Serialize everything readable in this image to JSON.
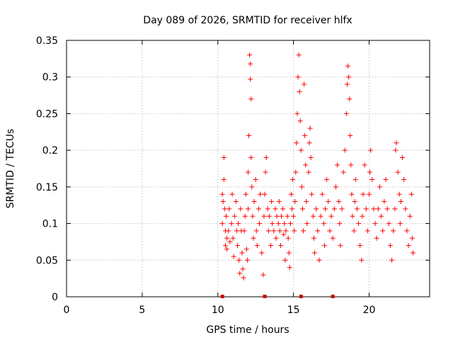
{
  "chart_data": {
    "type": "scatter",
    "title": "Day 089 of 2026, SRMTID for receiver hlfx",
    "xlabel": "GPS time / hours",
    "ylabel": "SRMTID / TECUs",
    "xlim": [
      0,
      24
    ],
    "ylim": [
      0,
      0.35
    ],
    "xticks": [
      0,
      5,
      10,
      15,
      20
    ],
    "xtick_labels": [
      "0",
      "5",
      "10",
      "15",
      "20"
    ],
    "yticks": [
      0,
      0.05,
      0.1,
      0.15,
      0.2,
      0.25,
      0.3,
      0.35
    ],
    "ytick_labels": [
      "0",
      "0.05",
      "0.1",
      "0.15",
      "0.2",
      "0.25",
      "0.3",
      "0.35"
    ],
    "grid": true,
    "marker": "plus",
    "color": "#ff0000",
    "series": [
      {
        "name": "SRMTID",
        "points": [
          [
            10.3,
            0.14
          ],
          [
            10.3,
            0.1
          ],
          [
            10.35,
            0.13
          ],
          [
            10.4,
            0.19
          ],
          [
            10.4,
            0.16
          ],
          [
            10.45,
            0.12
          ],
          [
            10.5,
            0.09
          ],
          [
            10.5,
            0.07
          ],
          [
            10.55,
            0.11
          ],
          [
            10.6,
            0.08
          ],
          [
            10.6,
            0.065
          ],
          [
            10.7,
            0.09
          ],
          [
            10.75,
            0.12
          ],
          [
            10.8,
            0.075
          ],
          [
            10.9,
            0.1
          ],
          [
            10.95,
            0.14
          ],
          [
            11.0,
            0.08
          ],
          [
            11.05,
            0.055
          ],
          [
            11.1,
            0.11
          ],
          [
            11.2,
            0.13
          ],
          [
            11.25,
            0.09
          ],
          [
            11.3,
            0.07
          ],
          [
            11.35,
            0.1
          ],
          [
            11.4,
            0.05
          ],
          [
            11.45,
            0.032
          ],
          [
            11.5,
            0.12
          ],
          [
            11.55,
            0.09
          ],
          [
            11.6,
            0.06
          ],
          [
            11.65,
            0.038
          ],
          [
            11.7,
            0.026
          ],
          [
            11.75,
            0.09
          ],
          [
            11.8,
            0.11
          ],
          [
            11.85,
            0.14
          ],
          [
            11.9,
            0.065
          ],
          [
            11.95,
            0.05
          ],
          [
            12.0,
            0.12
          ],
          [
            12.0,
            0.17
          ],
          [
            12.05,
            0.22
          ],
          [
            12.1,
            0.33
          ],
          [
            12.15,
            0.318
          ],
          [
            12.15,
            0.297
          ],
          [
            12.2,
            0.27
          ],
          [
            12.2,
            0.19
          ],
          [
            12.25,
            0.15
          ],
          [
            12.3,
            0.11
          ],
          [
            12.35,
            0.08
          ],
          [
            12.4,
            0.13
          ],
          [
            12.5,
            0.16
          ],
          [
            12.55,
            0.09
          ],
          [
            12.6,
            0.07
          ],
          [
            12.7,
            0.12
          ],
          [
            12.75,
            0.1
          ],
          [
            12.8,
            0.14
          ],
          [
            12.9,
            0.06
          ],
          [
            13.0,
            0.03
          ],
          [
            13.05,
            0.11
          ],
          [
            13.1,
            0.14
          ],
          [
            13.15,
            0.17
          ],
          [
            13.2,
            0.19
          ],
          [
            13.3,
            0.12
          ],
          [
            13.35,
            0.09
          ],
          [
            13.4,
            0.11
          ],
          [
            13.5,
            0.07
          ],
          [
            13.55,
            0.13
          ],
          [
            13.6,
            0.1
          ],
          [
            13.7,
            0.09
          ],
          [
            13.8,
            0.12
          ],
          [
            13.85,
            0.08
          ],
          [
            13.9,
            0.11
          ],
          [
            14.0,
            0.1
          ],
          [
            14.05,
            0.13
          ],
          [
            14.1,
            0.09
          ],
          [
            14.15,
            0.07
          ],
          [
            14.2,
            0.11
          ],
          [
            14.3,
            0.12
          ],
          [
            14.35,
            0.085
          ],
          [
            14.4,
            0.1
          ],
          [
            14.45,
            0.05
          ],
          [
            14.5,
            0.09
          ],
          [
            14.6,
            0.11
          ],
          [
            14.65,
            0.08
          ],
          [
            14.7,
            0.06
          ],
          [
            14.75,
            0.04
          ],
          [
            14.8,
            0.1
          ],
          [
            14.85,
            0.14
          ],
          [
            14.9,
            0.12
          ],
          [
            14.95,
            0.16
          ],
          [
            15.0,
            0.11
          ],
          [
            15.05,
            0.09
          ],
          [
            15.1,
            0.13
          ],
          [
            15.15,
            0.17
          ],
          [
            15.2,
            0.21
          ],
          [
            15.25,
            0.25
          ],
          [
            15.3,
            0.3
          ],
          [
            15.35,
            0.33
          ],
          [
            15.4,
            0.28
          ],
          [
            15.45,
            0.24
          ],
          [
            15.5,
            0.2
          ],
          [
            15.55,
            0.15
          ],
          [
            15.6,
            0.12
          ],
          [
            15.65,
            0.09
          ],
          [
            15.7,
            0.29
          ],
          [
            15.75,
            0.22
          ],
          [
            15.8,
            0.18
          ],
          [
            15.85,
            0.13
          ],
          [
            15.9,
            0.1
          ],
          [
            16.0,
            0.17
          ],
          [
            16.05,
            0.21
          ],
          [
            16.1,
            0.23
          ],
          [
            16.15,
            0.19
          ],
          [
            16.2,
            0.14
          ],
          [
            16.3,
            0.11
          ],
          [
            16.35,
            0.08
          ],
          [
            16.4,
            0.06
          ],
          [
            16.5,
            0.12
          ],
          [
            16.6,
            0.09
          ],
          [
            16.7,
            0.05
          ],
          [
            16.8,
            0.11
          ],
          [
            16.9,
            0.14
          ],
          [
            17.0,
            0.1
          ],
          [
            17.05,
            0.07
          ],
          [
            17.1,
            0.12
          ],
          [
            17.2,
            0.16
          ],
          [
            17.3,
            0.13
          ],
          [
            17.4,
            0.09
          ],
          [
            17.5,
            0.11
          ],
          [
            17.6,
            0.08
          ],
          [
            17.7,
            0.12
          ],
          [
            17.8,
            0.15
          ],
          [
            17.9,
            0.18
          ],
          [
            18.0,
            0.13
          ],
          [
            18.05,
            0.1
          ],
          [
            18.1,
            0.07
          ],
          [
            18.2,
            0.12
          ],
          [
            18.3,
            0.17
          ],
          [
            18.4,
            0.2
          ],
          [
            18.5,
            0.25
          ],
          [
            18.55,
            0.29
          ],
          [
            18.6,
            0.315
          ],
          [
            18.65,
            0.3
          ],
          [
            18.7,
            0.27
          ],
          [
            18.75,
            0.22
          ],
          [
            18.8,
            0.18
          ],
          [
            18.85,
            0.14
          ],
          [
            18.9,
            0.11
          ],
          [
            19.0,
            0.09
          ],
          [
            19.05,
            0.13
          ],
          [
            19.1,
            0.16
          ],
          [
            19.2,
            0.12
          ],
          [
            19.3,
            0.1
          ],
          [
            19.4,
            0.07
          ],
          [
            19.5,
            0.05
          ],
          [
            19.55,
            0.11
          ],
          [
            19.6,
            0.14
          ],
          [
            19.7,
            0.18
          ],
          [
            19.8,
            0.12
          ],
          [
            19.9,
            0.09
          ],
          [
            20.0,
            0.14
          ],
          [
            20.05,
            0.17
          ],
          [
            20.1,
            0.2
          ],
          [
            20.2,
            0.16
          ],
          [
            20.3,
            0.12
          ],
          [
            20.4,
            0.1
          ],
          [
            20.5,
            0.08
          ],
          [
            20.6,
            0.12
          ],
          [
            20.7,
            0.15
          ],
          [
            20.8,
            0.11
          ],
          [
            20.9,
            0.09
          ],
          [
            21.0,
            0.13
          ],
          [
            21.1,
            0.16
          ],
          [
            21.2,
            0.12
          ],
          [
            21.3,
            0.1
          ],
          [
            21.4,
            0.07
          ],
          [
            21.5,
            0.05
          ],
          [
            21.6,
            0.09
          ],
          [
            21.7,
            0.12
          ],
          [
            21.75,
            0.2
          ],
          [
            21.8,
            0.21
          ],
          [
            21.9,
            0.17
          ],
          [
            22.0,
            0.14
          ],
          [
            22.05,
            0.1
          ],
          [
            22.1,
            0.13
          ],
          [
            22.2,
            0.19
          ],
          [
            22.3,
            0.16
          ],
          [
            22.4,
            0.12
          ],
          [
            22.5,
            0.09
          ],
          [
            22.6,
            0.07
          ],
          [
            22.7,
            0.11
          ],
          [
            22.8,
            0.14
          ],
          [
            22.85,
            0.08
          ],
          [
            22.9,
            0.06
          ]
        ]
      }
    ],
    "markers_at_zero": [
      10.3,
      13.1,
      15.5,
      17.6
    ]
  }
}
